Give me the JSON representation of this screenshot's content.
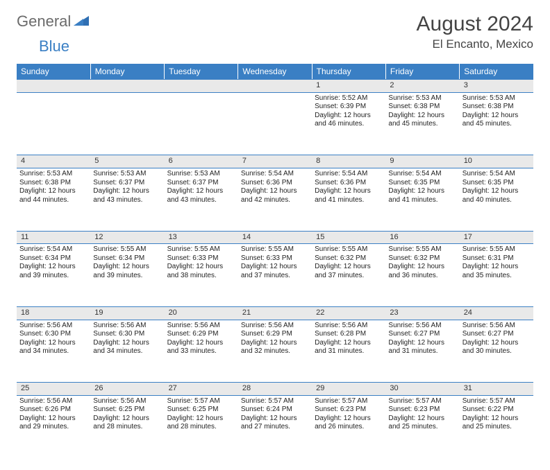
{
  "brand": {
    "part1": "General",
    "part2": "Blue"
  },
  "title": "August 2024",
  "location": "El Encanto, Mexico",
  "colors": {
    "header_bg": "#3a7fc4",
    "header_text": "#ffffff",
    "daynum_bg": "#e9e9e9",
    "border": "#3a7fc4",
    "text": "#222222",
    "logo_gray": "#6b6b6b",
    "logo_blue": "#3a7fc4"
  },
  "weekdays": [
    "Sunday",
    "Monday",
    "Tuesday",
    "Wednesday",
    "Thursday",
    "Friday",
    "Saturday"
  ],
  "weeks": [
    [
      null,
      null,
      null,
      null,
      {
        "n": "1",
        "sr": "5:52 AM",
        "ss": "6:39 PM",
        "dl": "12 hours and 46 minutes."
      },
      {
        "n": "2",
        "sr": "5:53 AM",
        "ss": "6:38 PM",
        "dl": "12 hours and 45 minutes."
      },
      {
        "n": "3",
        "sr": "5:53 AM",
        "ss": "6:38 PM",
        "dl": "12 hours and 45 minutes."
      }
    ],
    [
      {
        "n": "4",
        "sr": "5:53 AM",
        "ss": "6:38 PM",
        "dl": "12 hours and 44 minutes."
      },
      {
        "n": "5",
        "sr": "5:53 AM",
        "ss": "6:37 PM",
        "dl": "12 hours and 43 minutes."
      },
      {
        "n": "6",
        "sr": "5:53 AM",
        "ss": "6:37 PM",
        "dl": "12 hours and 43 minutes."
      },
      {
        "n": "7",
        "sr": "5:54 AM",
        "ss": "6:36 PM",
        "dl": "12 hours and 42 minutes."
      },
      {
        "n": "8",
        "sr": "5:54 AM",
        "ss": "6:36 PM",
        "dl": "12 hours and 41 minutes."
      },
      {
        "n": "9",
        "sr": "5:54 AM",
        "ss": "6:35 PM",
        "dl": "12 hours and 41 minutes."
      },
      {
        "n": "10",
        "sr": "5:54 AM",
        "ss": "6:35 PM",
        "dl": "12 hours and 40 minutes."
      }
    ],
    [
      {
        "n": "11",
        "sr": "5:54 AM",
        "ss": "6:34 PM",
        "dl": "12 hours and 39 minutes."
      },
      {
        "n": "12",
        "sr": "5:55 AM",
        "ss": "6:34 PM",
        "dl": "12 hours and 39 minutes."
      },
      {
        "n": "13",
        "sr": "5:55 AM",
        "ss": "6:33 PM",
        "dl": "12 hours and 38 minutes."
      },
      {
        "n": "14",
        "sr": "5:55 AM",
        "ss": "6:33 PM",
        "dl": "12 hours and 37 minutes."
      },
      {
        "n": "15",
        "sr": "5:55 AM",
        "ss": "6:32 PM",
        "dl": "12 hours and 37 minutes."
      },
      {
        "n": "16",
        "sr": "5:55 AM",
        "ss": "6:32 PM",
        "dl": "12 hours and 36 minutes."
      },
      {
        "n": "17",
        "sr": "5:55 AM",
        "ss": "6:31 PM",
        "dl": "12 hours and 35 minutes."
      }
    ],
    [
      {
        "n": "18",
        "sr": "5:56 AM",
        "ss": "6:30 PM",
        "dl": "12 hours and 34 minutes."
      },
      {
        "n": "19",
        "sr": "5:56 AM",
        "ss": "6:30 PM",
        "dl": "12 hours and 34 minutes."
      },
      {
        "n": "20",
        "sr": "5:56 AM",
        "ss": "6:29 PM",
        "dl": "12 hours and 33 minutes."
      },
      {
        "n": "21",
        "sr": "5:56 AM",
        "ss": "6:29 PM",
        "dl": "12 hours and 32 minutes."
      },
      {
        "n": "22",
        "sr": "5:56 AM",
        "ss": "6:28 PM",
        "dl": "12 hours and 31 minutes."
      },
      {
        "n": "23",
        "sr": "5:56 AM",
        "ss": "6:27 PM",
        "dl": "12 hours and 31 minutes."
      },
      {
        "n": "24",
        "sr": "5:56 AM",
        "ss": "6:27 PM",
        "dl": "12 hours and 30 minutes."
      }
    ],
    [
      {
        "n": "25",
        "sr": "5:56 AM",
        "ss": "6:26 PM",
        "dl": "12 hours and 29 minutes."
      },
      {
        "n": "26",
        "sr": "5:56 AM",
        "ss": "6:25 PM",
        "dl": "12 hours and 28 minutes."
      },
      {
        "n": "27",
        "sr": "5:57 AM",
        "ss": "6:25 PM",
        "dl": "12 hours and 28 minutes."
      },
      {
        "n": "28",
        "sr": "5:57 AM",
        "ss": "6:24 PM",
        "dl": "12 hours and 27 minutes."
      },
      {
        "n": "29",
        "sr": "5:57 AM",
        "ss": "6:23 PM",
        "dl": "12 hours and 26 minutes."
      },
      {
        "n": "30",
        "sr": "5:57 AM",
        "ss": "6:23 PM",
        "dl": "12 hours and 25 minutes."
      },
      {
        "n": "31",
        "sr": "5:57 AM",
        "ss": "6:22 PM",
        "dl": "12 hours and 25 minutes."
      }
    ]
  ],
  "labels": {
    "sunrise": "Sunrise:",
    "sunset": "Sunset:",
    "daylight": "Daylight:"
  }
}
